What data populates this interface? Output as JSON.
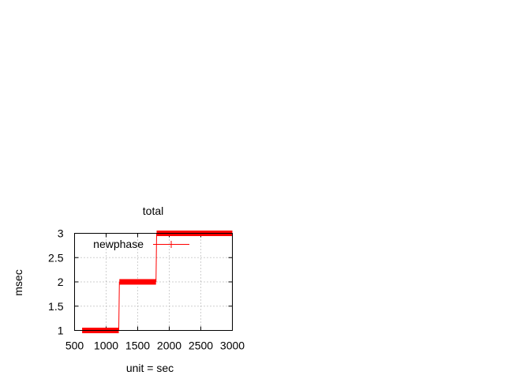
{
  "chart_data": {
    "type": "line",
    "title": "total",
    "xlabel": "unit = sec",
    "ylabel": "msec",
    "xlim": [
      500,
      3000
    ],
    "ylim": [
      1,
      3
    ],
    "xticks": [
      500,
      1000,
      1500,
      2000,
      2500,
      3000
    ],
    "yticks": [
      1,
      1.5,
      2,
      2.5,
      3
    ],
    "xtick_labels": [
      "500",
      "1000",
      "1500",
      "2000",
      "2500",
      "3000"
    ],
    "ytick_labels": [
      "1",
      "1.5",
      "2",
      "2.5",
      "3"
    ],
    "grid": true,
    "legend_position": "top-left",
    "series": [
      {
        "name": "newphase",
        "color": "#ff0000",
        "style": "linespoints",
        "marker": "plus",
        "steps": [
          {
            "x_start": 620,
            "x_end": 1200,
            "y": 1
          },
          {
            "x_start": 1210,
            "x_end": 1790,
            "y": 2
          },
          {
            "x_start": 1800,
            "x_end": 3000,
            "y": 3
          }
        ]
      }
    ]
  }
}
